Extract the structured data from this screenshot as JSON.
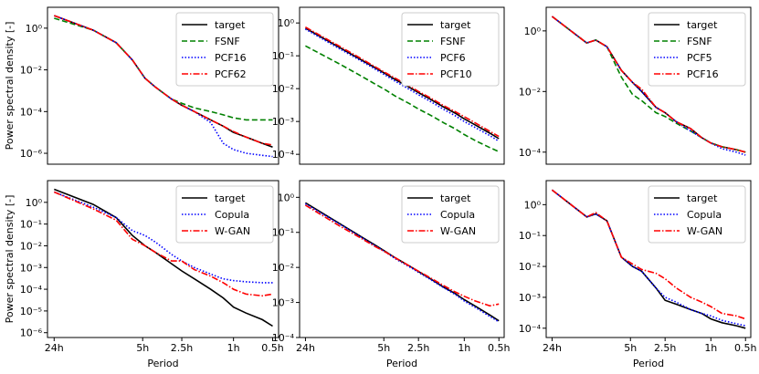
{
  "chart_data": [
    {
      "type": "line",
      "ylabel": "Power spectral density [-]",
      "yscale": "log",
      "xscale": "log",
      "legend": "upper right",
      "x": [
        24,
        12,
        8,
        6,
        4.8,
        4,
        3,
        2.5,
        2,
        1.5,
        1.2,
        1,
        0.8,
        0.6,
        0.5
      ],
      "xlim": [
        27,
        0.45
      ],
      "ylim": [
        3e-07,
        10
      ],
      "yticks": [
        {
          "value": 1,
          "label": "10⁰"
        },
        {
          "value": 0.01,
          "label": "10⁻²"
        },
        {
          "value": 0.0001,
          "label": "10⁻⁴"
        },
        {
          "value": 1e-06,
          "label": "10⁻⁶"
        }
      ],
      "series": [
        {
          "name": "target",
          "color": "#000000",
          "style": "solid",
          "values": [
            4,
            0.8,
            0.2,
            0.03,
            0.004,
            0.0015,
            0.0004,
            0.0002,
            0.0001,
            4e-05,
            2e-05,
            1e-05,
            6e-06,
            3e-06,
            2e-06
          ]
        },
        {
          "name": "FSNF",
          "color": "#008000",
          "style": "dashed",
          "values": [
            3,
            0.8,
            0.2,
            0.03,
            0.004,
            0.0015,
            0.0004,
            0.00025,
            0.00015,
            0.0001,
            7e-05,
            5e-05,
            4e-05,
            4e-05,
            4e-05
          ]
        },
        {
          "name": "PCF16",
          "color": "#0000ff",
          "style": "dotted",
          "values": [
            4,
            0.8,
            0.2,
            0.03,
            0.004,
            0.0015,
            0.0004,
            0.0002,
            0.0001,
            3e-05,
            3e-06,
            1.5e-06,
            1e-06,
            8e-07,
            7e-07
          ]
        },
        {
          "name": "PCF62",
          "color": "#ff0000",
          "style": "dashdot",
          "values": [
            4,
            0.8,
            0.2,
            0.03,
            0.004,
            0.0015,
            0.0004,
            0.0002,
            0.0001,
            4e-05,
            2e-05,
            1.1e-05,
            6e-06,
            3e-06,
            2.5e-06
          ]
        }
      ]
    },
    {
      "type": "line",
      "yscale": "log",
      "xscale": "log",
      "legend": "upper right",
      "x": [
        24,
        12,
        8,
        6,
        4.8,
        4,
        3,
        2.5,
        2,
        1.5,
        1.2,
        1,
        0.8,
        0.6,
        0.5
      ],
      "xlim": [
        27,
        0.45
      ],
      "ylim": [
        5e-05,
        3
      ],
      "yticks": [
        {
          "value": 1,
          "label": "10⁰"
        },
        {
          "value": 0.1,
          "label": "10⁻¹"
        },
        {
          "value": 0.01,
          "label": "10⁻²"
        },
        {
          "value": 0.001,
          "label": "10⁻³"
        },
        {
          "value": 0.0001,
          "label": "10⁻⁴"
        }
      ],
      "series": [
        {
          "name": "target",
          "color": "#000000",
          "style": "solid",
          "values": [
            0.7,
            0.175,
            0.078,
            0.044,
            0.028,
            0.019,
            0.011,
            0.0076,
            0.0049,
            0.0027,
            0.0018,
            0.0012,
            0.00078,
            0.00044,
            0.0003
          ]
        },
        {
          "name": "FSNF",
          "color": "#008000",
          "style": "dashed",
          "values": [
            0.2,
            0.055,
            0.025,
            0.014,
            0.009,
            0.006,
            0.0035,
            0.0024,
            0.0016,
            0.0009,
            0.0006,
            0.0004,
            0.00026,
            0.00016,
            0.00012
          ]
        },
        {
          "name": "PCF6",
          "color": "#0000ff",
          "style": "dotted",
          "values": [
            0.65,
            0.16,
            0.072,
            0.04,
            0.025,
            0.017,
            0.0095,
            0.0065,
            0.0042,
            0.0023,
            0.0015,
            0.001,
            0.00065,
            0.00037,
            0.00025
          ]
        },
        {
          "name": "PCF10",
          "color": "#ff0000",
          "style": "dashdot",
          "values": [
            0.75,
            0.19,
            0.085,
            0.047,
            0.03,
            0.021,
            0.012,
            0.0082,
            0.0054,
            0.003,
            0.002,
            0.0014,
            0.0009,
            0.0005,
            0.00035
          ]
        }
      ]
    },
    {
      "type": "line",
      "yscale": "log",
      "xscale": "log",
      "legend": "upper right",
      "x": [
        24,
        12,
        10,
        8,
        6,
        4.8,
        4,
        3,
        2.5,
        2,
        1.5,
        1.2,
        1,
        0.8,
        0.6,
        0.5
      ],
      "xlim": [
        27,
        0.45
      ],
      "ylim": [
        4e-05,
        6
      ],
      "yticks": [
        {
          "value": 1,
          "label": "10⁰"
        },
        {
          "value": 0.01,
          "label": "10⁻²"
        },
        {
          "value": 0.0001,
          "label": "10⁻⁴"
        }
      ],
      "series": [
        {
          "name": "target",
          "color": "#000000",
          "style": "solid",
          "values": [
            3,
            0.4,
            0.5,
            0.3,
            0.05,
            0.02,
            0.01,
            0.003,
            0.002,
            0.001,
            0.0006,
            0.0003,
            0.0002,
            0.00015,
            0.00012,
            0.0001
          ]
        },
        {
          "name": "FSNF",
          "color": "#008000",
          "style": "dashed",
          "values": [
            3,
            0.4,
            0.5,
            0.3,
            0.03,
            0.008,
            0.005,
            0.002,
            0.0015,
            0.0009,
            0.0005,
            0.0003,
            0.0002,
            0.00015,
            0.00012,
            0.0001
          ]
        },
        {
          "name": "PCF5",
          "color": "#0000ff",
          "style": "dotted",
          "values": [
            3,
            0.4,
            0.5,
            0.3,
            0.05,
            0.02,
            0.01,
            0.003,
            0.002,
            0.001,
            0.0005,
            0.0003,
            0.0002,
            0.00013,
            0.0001,
            8e-05
          ]
        },
        {
          "name": "PCF16",
          "color": "#ff0000",
          "style": "dashdot",
          "values": [
            3,
            0.4,
            0.5,
            0.3,
            0.05,
            0.02,
            0.012,
            0.003,
            0.002,
            0.001,
            0.0006,
            0.0003,
            0.0002,
            0.00015,
            0.00012,
            0.0001
          ]
        }
      ]
    },
    {
      "type": "line",
      "ylabel": "Power spectral density [-]",
      "xlabel": "Period",
      "yscale": "log",
      "xscale": "log",
      "legend": "upper right",
      "x": [
        24,
        12,
        8,
        6,
        4.8,
        4,
        3,
        2.5,
        2,
        1.5,
        1.2,
        1,
        0.8,
        0.6,
        0.5
      ],
      "xlim": [
        27,
        0.45
      ],
      "ylim": [
        6e-07,
        10
      ],
      "xticks": [
        {
          "value": 24,
          "label": "24h"
        },
        {
          "value": 5,
          "label": "5h"
        },
        {
          "value": 2.5,
          "label": "2.5h"
        },
        {
          "value": 1,
          "label": "1h"
        },
        {
          "value": 0.5,
          "label": "0.5h"
        }
      ],
      "yticks": [
        {
          "value": 1,
          "label": "10⁰"
        },
        {
          "value": 0.1,
          "label": "10⁻¹"
        },
        {
          "value": 0.01,
          "label": "10⁻²"
        },
        {
          "value": 0.001,
          "label": "10⁻³"
        },
        {
          "value": 0.0001,
          "label": "10⁻⁴"
        },
        {
          "value": 1e-05,
          "label": "10⁻⁵"
        },
        {
          "value": 1e-06,
          "label": "10⁻⁶"
        }
      ],
      "series": [
        {
          "name": "target",
          "color": "#000000",
          "style": "solid",
          "values": [
            4,
            0.8,
            0.2,
            0.03,
            0.01,
            0.005,
            0.0015,
            0.0007,
            0.0003,
            0.0001,
            4e-05,
            1.5e-05,
            8e-06,
            4e-06,
            2e-06
          ]
        },
        {
          "name": "Copula",
          "color": "#0000ff",
          "style": "dotted",
          "values": [
            3,
            0.6,
            0.2,
            0.05,
            0.03,
            0.015,
            0.004,
            0.002,
            0.001,
            0.0005,
            0.0003,
            0.00025,
            0.00022,
            0.0002,
            0.0002
          ]
        },
        {
          "name": "W-GAN",
          "color": "#ff0000",
          "style": "dashdot",
          "values": [
            3,
            0.5,
            0.15,
            0.02,
            0.01,
            0.005,
            0.002,
            0.002,
            0.0008,
            0.0004,
            0.0002,
            0.0001,
            6e-05,
            5e-05,
            6e-05
          ]
        }
      ]
    },
    {
      "type": "line",
      "xlabel": "Period",
      "yscale": "log",
      "xscale": "log",
      "legend": "upper right",
      "x": [
        24,
        12,
        8,
        6,
        4.8,
        4,
        3,
        2.5,
        2,
        1.5,
        1.2,
        1,
        0.8,
        0.6,
        0.5
      ],
      "xlim": [
        27,
        0.45
      ],
      "ylim": [
        0.0001,
        3
      ],
      "xticks": [
        {
          "value": 24,
          "label": "24h"
        },
        {
          "value": 5,
          "label": "5h"
        },
        {
          "value": 2.5,
          "label": "2.5h"
        },
        {
          "value": 1,
          "label": "1h"
        },
        {
          "value": 0.5,
          "label": "0.5h"
        }
      ],
      "yticks": [
        {
          "value": 1,
          "label": "10⁰"
        },
        {
          "value": 0.1,
          "label": "10⁻¹"
        },
        {
          "value": 0.01,
          "label": "10⁻²"
        },
        {
          "value": 0.001,
          "label": "10⁻³"
        },
        {
          "value": 0.0001,
          "label": "10⁻⁴"
        }
      ],
      "series": [
        {
          "name": "target",
          "color": "#000000",
          "style": "solid",
          "values": [
            0.7,
            0.175,
            0.078,
            0.044,
            0.028,
            0.019,
            0.011,
            0.0076,
            0.0049,
            0.0027,
            0.0018,
            0.0012,
            0.00078,
            0.00044,
            0.0003
          ]
        },
        {
          "name": "Copula",
          "color": "#0000ff",
          "style": "dotted",
          "values": [
            0.65,
            0.17,
            0.075,
            0.042,
            0.027,
            0.018,
            0.0105,
            0.0072,
            0.0047,
            0.0026,
            0.0017,
            0.0011,
            0.00072,
            0.0004,
            0.00028
          ]
        },
        {
          "name": "W-GAN",
          "color": "#ff0000",
          "style": "dashdot",
          "values": [
            0.6,
            0.15,
            0.07,
            0.04,
            0.027,
            0.019,
            0.011,
            0.0078,
            0.0052,
            0.003,
            0.002,
            0.0015,
            0.0011,
            0.0008,
            0.0009
          ]
        }
      ]
    },
    {
      "type": "line",
      "xlabel": "Period",
      "yscale": "log",
      "xscale": "log",
      "legend": "upper right",
      "x": [
        24,
        12,
        10,
        8,
        6,
        4.8,
        4,
        3,
        2.5,
        2,
        1.5,
        1.2,
        1,
        0.8,
        0.6,
        0.5
      ],
      "xlim": [
        27,
        0.45
      ],
      "ylim": [
        5e-05,
        6
      ],
      "xticks": [
        {
          "value": 24,
          "label": "24h"
        },
        {
          "value": 5,
          "label": "5h"
        },
        {
          "value": 2.5,
          "label": "2.5h"
        },
        {
          "value": 1,
          "label": "1h"
        },
        {
          "value": 0.5,
          "label": "0.5h"
        }
      ],
      "yticks": [
        {
          "value": 1,
          "label": "10⁰"
        },
        {
          "value": 0.1,
          "label": "10⁻¹"
        },
        {
          "value": 0.01,
          "label": "10⁻²"
        },
        {
          "value": 0.001,
          "label": "10⁻³"
        },
        {
          "value": 0.0001,
          "label": "10⁻⁴"
        }
      ],
      "series": [
        {
          "name": "target",
          "color": "#000000",
          "style": "solid",
          "values": [
            3,
            0.4,
            0.5,
            0.3,
            0.02,
            0.01,
            0.007,
            0.002,
            0.0008,
            0.0006,
            0.0004,
            0.0003,
            0.0002,
            0.00015,
            0.00012,
            0.0001
          ]
        },
        {
          "name": "Copula",
          "color": "#0000ff",
          "style": "dotted",
          "values": [
            3,
            0.4,
            0.5,
            0.3,
            0.02,
            0.01,
            0.007,
            0.002,
            0.001,
            0.0007,
            0.0004,
            0.0003,
            0.00025,
            0.00018,
            0.00014,
            0.00012
          ]
        },
        {
          "name": "W-GAN",
          "color": "#ff0000",
          "style": "dashdot",
          "values": [
            3,
            0.4,
            0.55,
            0.3,
            0.02,
            0.012,
            0.008,
            0.006,
            0.004,
            0.002,
            0.001,
            0.0007,
            0.0005,
            0.0003,
            0.00025,
            0.0002
          ]
        }
      ]
    }
  ]
}
